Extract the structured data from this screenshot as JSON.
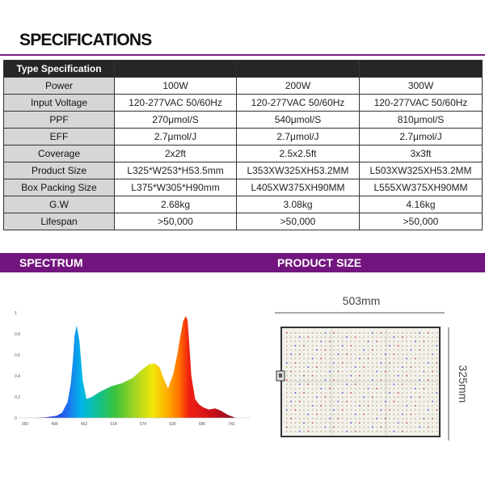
{
  "header": {
    "title": "SPECIFICATIONS"
  },
  "spec_table": {
    "header_label": "Type Specification",
    "columns": [
      "",
      "",
      ""
    ],
    "rows": [
      {
        "label": "Power",
        "values": [
          "100W",
          "200W",
          "300W"
        ]
      },
      {
        "label": "Input Voltage",
        "values": [
          "120-277VAC 50/60Hz",
          "120-277VAC 50/60Hz",
          "120-277VAC 50/60Hz"
        ]
      },
      {
        "label": "PPF",
        "values": [
          "270μmol/S",
          "540μmol/S",
          "810μmol/S"
        ]
      },
      {
        "label": "EFF",
        "values": [
          "2.7μmol/J",
          "2.7μmol/J",
          "2.7μmol/J"
        ]
      },
      {
        "label": "Coverage",
        "values": [
          "2x2ft",
          "2.5x2.5ft",
          "3x3ft"
        ]
      },
      {
        "label": "Product Size",
        "values": [
          "L325*W253*H53.5mm",
          "L353XW325XH53.2MM",
          "L503XW325XH53.2MM"
        ]
      },
      {
        "label": "Box Packing Size",
        "values": [
          "L375*W305*H90mm",
          "L405XW375XH90MM",
          "L555XW375XH90MM"
        ]
      },
      {
        "label": "G.W",
        "values": [
          "2.68kg",
          "3.08kg",
          "4.16kg"
        ]
      },
      {
        "label": "Lifespan",
        "values": [
          ">50,000",
          ">50,000",
          ">50,000"
        ]
      }
    ]
  },
  "sections": {
    "spectrum": "SPECTRUM",
    "product_size": "PRODUCT SIZE"
  },
  "chart_data": {
    "type": "area",
    "title": "",
    "xlabel": "",
    "ylabel": "",
    "x_ticks": [
      "350",
      "406",
      "462",
      "518",
      "574",
      "630",
      "686",
      "742",
      "798 nm"
    ],
    "y_ticks": [
      "0",
      "0.2",
      "0.4",
      "0.6",
      "0.8",
      "1"
    ],
    "xlim": [
      350,
      798
    ],
    "ylim": [
      0,
      1
    ],
    "grid": false,
    "series": [
      {
        "x": [
          380,
          400,
          420,
          430,
          440,
          446,
          450,
          453,
          457,
          462,
          468,
          475,
          485,
          500,
          520,
          540,
          560,
          575,
          590,
          600,
          610,
          615,
          625,
          635,
          642,
          648,
          653,
          658,
          661,
          664,
          668,
          675,
          682,
          690,
          700,
          712,
          722,
          735,
          750
        ],
        "y": [
          0.0,
          0.005,
          0.02,
          0.05,
          0.15,
          0.32,
          0.55,
          0.78,
          0.88,
          0.73,
          0.36,
          0.18,
          0.2,
          0.25,
          0.3,
          0.33,
          0.38,
          0.45,
          0.51,
          0.52,
          0.48,
          0.4,
          0.28,
          0.42,
          0.6,
          0.78,
          0.92,
          0.97,
          0.93,
          0.72,
          0.4,
          0.18,
          0.13,
          0.1,
          0.08,
          0.09,
          0.07,
          0.03,
          0.0
        ]
      }
    ]
  },
  "product_size": {
    "width_label": "503mm",
    "height_label": "325mm"
  }
}
